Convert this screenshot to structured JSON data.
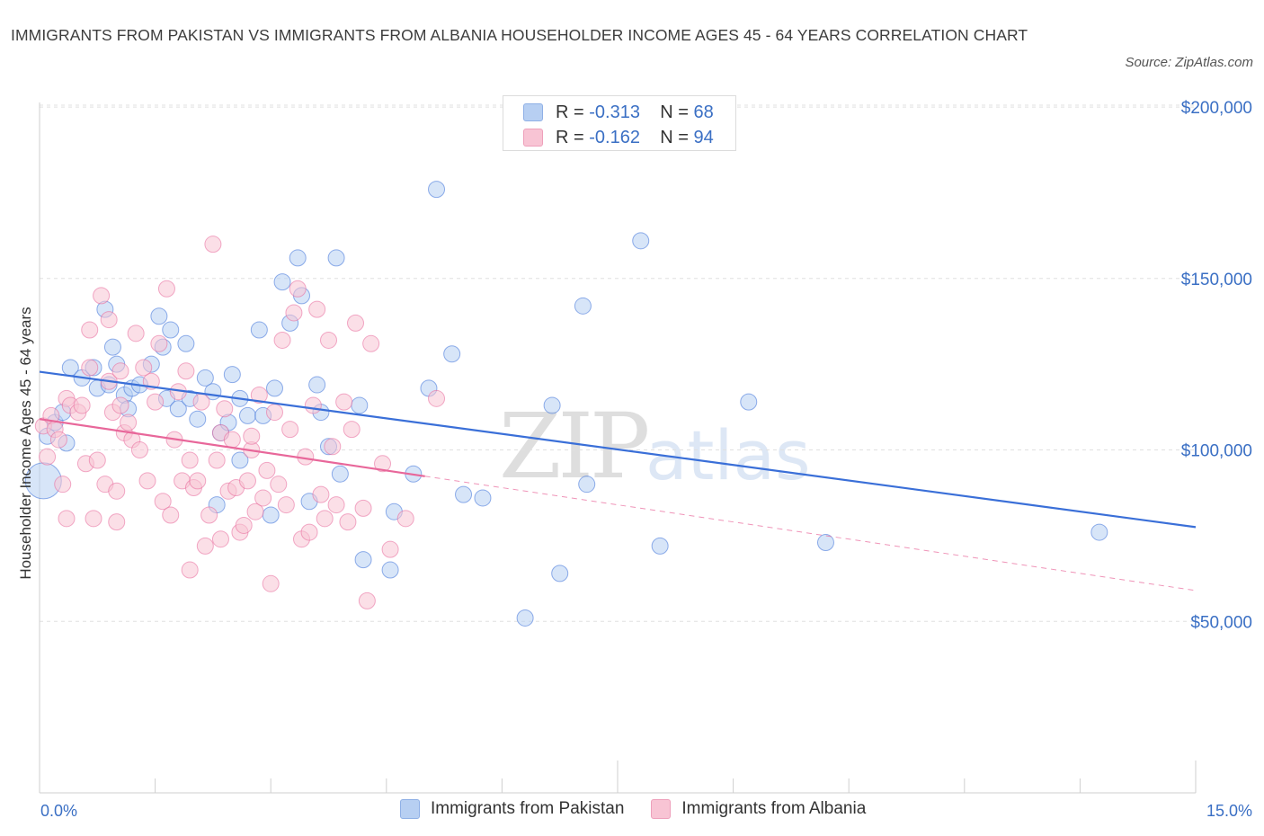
{
  "header": {
    "title": "IMMIGRANTS FROM PAKISTAN VS IMMIGRANTS FROM ALBANIA HOUSEHOLDER INCOME AGES 45 - 64 YEARS CORRELATION CHART",
    "source": "Source: ZipAtlas.com"
  },
  "watermark": {
    "zip": "ZIP",
    "atlas": "atlas"
  },
  "legend": {
    "rows": [
      {
        "r_label": "R =",
        "r_value": "-0.313",
        "n_label": "N =",
        "n_value": "68",
        "color": "#b7cff2"
      },
      {
        "r_label": "R =",
        "r_value": "-0.162",
        "n_label": "N =",
        "n_value": "94",
        "color": "#f8c4d4"
      }
    ]
  },
  "bottom_legend": {
    "items": [
      {
        "label": "Immigrants from Pakistan",
        "color": "#b7cff2"
      },
      {
        "label": "Immigrants from Albania",
        "color": "#f8c4d4"
      }
    ]
  },
  "chart_data": {
    "type": "scatter",
    "ylabel": "Householder Income Ages 45 - 64 years",
    "xlim": [
      0,
      15
    ],
    "ylim": [
      0,
      205000
    ],
    "x_ticks": [
      {
        "value": 0,
        "label": "0.0%"
      },
      {
        "value": 15,
        "label": "15.0%"
      }
    ],
    "y_ticks": [
      {
        "value": 50000,
        "label": "$50,000"
      },
      {
        "value": 100000,
        "label": "$100,000"
      },
      {
        "value": 150000,
        "label": "$150,000"
      },
      {
        "value": 200000,
        "label": "$200,000"
      }
    ],
    "grid": true,
    "series": [
      {
        "name": "Immigrants from Pakistan",
        "color": "#3a6fd8",
        "fill": "#b7cff2",
        "trend": {
          "x0": 0,
          "y0": 122800,
          "x1": 15,
          "y1": 77500,
          "dashed_from": null
        },
        "points": [
          [
            0.05,
            91000
          ],
          [
            0.1,
            104000
          ],
          [
            0.2,
            108000
          ],
          [
            0.3,
            111000
          ],
          [
            0.35,
            102000
          ],
          [
            0.4,
            124000
          ],
          [
            0.55,
            121000
          ],
          [
            0.7,
            124000
          ],
          [
            0.75,
            118000
          ],
          [
            0.85,
            141000
          ],
          [
            0.9,
            119000
          ],
          [
            0.95,
            130000
          ],
          [
            1.0,
            125000
          ],
          [
            1.1,
            116000
          ],
          [
            1.15,
            112000
          ],
          [
            1.2,
            118000
          ],
          [
            1.3,
            119000
          ],
          [
            1.45,
            125000
          ],
          [
            1.55,
            139000
          ],
          [
            1.6,
            130000
          ],
          [
            1.65,
            115000
          ],
          [
            1.7,
            135000
          ],
          [
            1.8,
            112000
          ],
          [
            1.9,
            131000
          ],
          [
            1.95,
            115000
          ],
          [
            2.05,
            109000
          ],
          [
            2.15,
            121000
          ],
          [
            2.25,
            117000
          ],
          [
            2.3,
            84000
          ],
          [
            2.35,
            105000
          ],
          [
            2.45,
            108000
          ],
          [
            2.5,
            122000
          ],
          [
            2.6,
            115000
          ],
          [
            2.6,
            97000
          ],
          [
            2.7,
            110000
          ],
          [
            2.85,
            135000
          ],
          [
            2.9,
            110000
          ],
          [
            3.0,
            81000
          ],
          [
            3.05,
            118000
          ],
          [
            3.15,
            149000
          ],
          [
            3.25,
            137000
          ],
          [
            3.35,
            156000
          ],
          [
            3.4,
            145000
          ],
          [
            3.5,
            85000
          ],
          [
            3.6,
            119000
          ],
          [
            3.65,
            111000
          ],
          [
            3.75,
            101000
          ],
          [
            3.85,
            156000
          ],
          [
            3.9,
            93000
          ],
          [
            4.15,
            113000
          ],
          [
            4.2,
            68000
          ],
          [
            4.55,
            65000
          ],
          [
            4.6,
            82000
          ],
          [
            4.85,
            93000
          ],
          [
            5.05,
            118000
          ],
          [
            5.15,
            176000
          ],
          [
            5.35,
            128000
          ],
          [
            5.5,
            87000
          ],
          [
            5.75,
            86000
          ],
          [
            6.3,
            51000
          ],
          [
            6.65,
            113000
          ],
          [
            6.75,
            64000
          ],
          [
            7.05,
            142000
          ],
          [
            7.1,
            90000
          ],
          [
            7.8,
            161000
          ],
          [
            8.05,
            72000
          ],
          [
            9.2,
            114000
          ],
          [
            10.2,
            73000
          ],
          [
            13.75,
            76000
          ]
        ]
      },
      {
        "name": "Immigrants from Albania",
        "color": "#e8679a",
        "fill": "#f8c4d4",
        "trend": {
          "x0": 0,
          "y0": 109000,
          "x1": 15,
          "y1": 59000,
          "dashed_from": 5.0
        },
        "points": [
          [
            0.05,
            107000
          ],
          [
            0.1,
            98000
          ],
          [
            0.15,
            110000
          ],
          [
            0.2,
            106000
          ],
          [
            0.25,
            103000
          ],
          [
            0.3,
            90000
          ],
          [
            0.35,
            80000
          ],
          [
            0.35,
            115000
          ],
          [
            0.4,
            113000
          ],
          [
            0.5,
            111000
          ],
          [
            0.55,
            113000
          ],
          [
            0.6,
            96000
          ],
          [
            0.65,
            124000
          ],
          [
            0.65,
            135000
          ],
          [
            0.7,
            80000
          ],
          [
            0.75,
            97000
          ],
          [
            0.8,
            145000
          ],
          [
            0.85,
            90000
          ],
          [
            0.9,
            120000
          ],
          [
            0.95,
            111000
          ],
          [
            1.0,
            88000
          ],
          [
            1.0,
            79000
          ],
          [
            1.05,
            113000
          ],
          [
            1.1,
            105000
          ],
          [
            1.15,
            108000
          ],
          [
            1.2,
            103000
          ],
          [
            1.25,
            134000
          ],
          [
            1.3,
            100000
          ],
          [
            1.35,
            124000
          ],
          [
            1.4,
            91000
          ],
          [
            1.45,
            120000
          ],
          [
            1.5,
            114000
          ],
          [
            1.55,
            131000
          ],
          [
            1.6,
            85000
          ],
          [
            1.65,
            147000
          ],
          [
            1.7,
            81000
          ],
          [
            1.75,
            103000
          ],
          [
            1.8,
            117000
          ],
          [
            1.85,
            91000
          ],
          [
            1.9,
            123000
          ],
          [
            1.95,
            97000
          ],
          [
            1.95,
            65000
          ],
          [
            2.0,
            89000
          ],
          [
            2.05,
            91000
          ],
          [
            2.1,
            114000
          ],
          [
            2.15,
            72000
          ],
          [
            2.2,
            81000
          ],
          [
            2.25,
            160000
          ],
          [
            2.3,
            97000
          ],
          [
            2.35,
            105000
          ],
          [
            2.4,
            112000
          ],
          [
            2.45,
            88000
          ],
          [
            2.5,
            103000
          ],
          [
            2.55,
            89000
          ],
          [
            2.6,
            76000
          ],
          [
            2.65,
            78000
          ],
          [
            2.7,
            91000
          ],
          [
            2.75,
            100000
          ],
          [
            2.75,
            104000
          ],
          [
            2.8,
            82000
          ],
          [
            2.85,
            116000
          ],
          [
            2.9,
            86000
          ],
          [
            2.95,
            94000
          ],
          [
            3.0,
            61000
          ],
          [
            3.05,
            111000
          ],
          [
            3.1,
            90000
          ],
          [
            3.15,
            132000
          ],
          [
            3.2,
            84000
          ],
          [
            3.25,
            106000
          ],
          [
            3.3,
            140000
          ],
          [
            3.35,
            147000
          ],
          [
            3.4,
            74000
          ],
          [
            3.45,
            98000
          ],
          [
            3.5,
            76000
          ],
          [
            3.55,
            113000
          ],
          [
            3.6,
            141000
          ],
          [
            3.65,
            87000
          ],
          [
            3.7,
            80000
          ],
          [
            3.75,
            132000
          ],
          [
            3.8,
            101000
          ],
          [
            3.85,
            84000
          ],
          [
            3.95,
            114000
          ],
          [
            4.0,
            79000
          ],
          [
            4.05,
            106000
          ],
          [
            4.1,
            137000
          ],
          [
            4.2,
            83000
          ],
          [
            4.25,
            56000
          ],
          [
            4.3,
            131000
          ],
          [
            4.45,
            96000
          ],
          [
            4.55,
            71000
          ],
          [
            4.75,
            80000
          ],
          [
            5.15,
            115000
          ],
          [
            2.35,
            74000
          ],
          [
            1.05,
            123000
          ],
          [
            0.9,
            138000
          ]
        ]
      }
    ]
  }
}
